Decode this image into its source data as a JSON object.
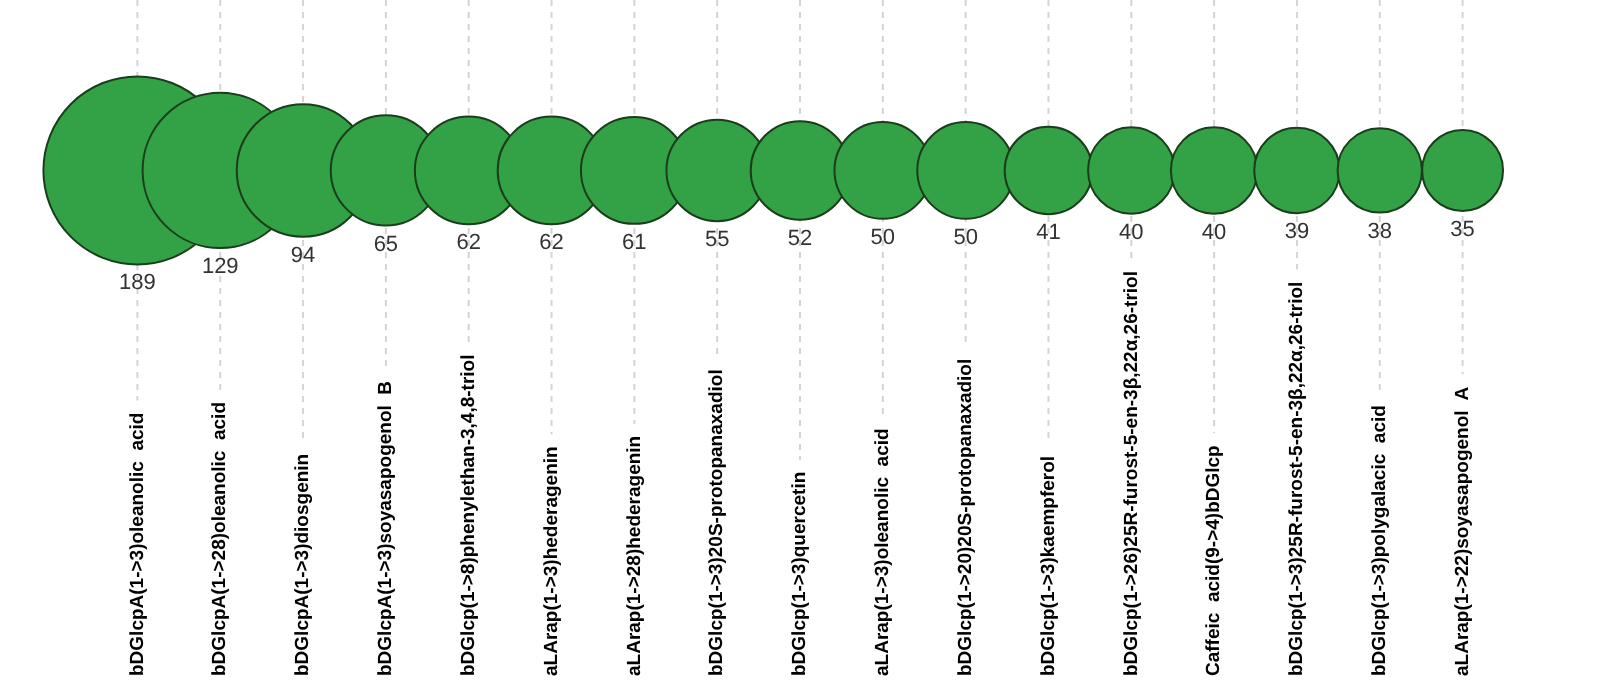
{
  "chart_data": {
    "type": "other",
    "categories": [
      "bDGlcpA(1->3)oleanolic  acid",
      "bDGlcpA(1->28)oleanolic  acid",
      "bDGlcpA(1->3)diosgenin",
      "bDGlcpA(1->3)soyasapogenol  B",
      "bDGlcp(1->8)phenylethan-3,4,8-triol",
      "aLArap(1->3)hederagenin",
      "aLArap(1->28)hederagenin",
      "bDGlcp(1->3)20S-protopanaxadiol",
      "bDGlcp(1->3)quercetin",
      "aLArap(1->3)oleanolic  acid",
      "bDGlcp(1->20)20S-protopanaxadiol",
      "bDGlcp(1->3)kaempferol",
      "bDGlcp(1->26)25R-furost-5-en-3β,22α,26-triol",
      "Caffeic  acid(9->4)bDGlcp",
      "bDGlcp(1->3)25R-furost-5-en-3β,22α,26-triol",
      "bDGlcp(1->3)polygalacic  acid",
      "aLArap(1->22)soyasapogenol  A"
    ],
    "values": [
      189,
      129,
      94,
      65,
      62,
      62,
      61,
      55,
      52,
      50,
      50,
      41,
      40,
      40,
      39,
      38,
      35
    ],
    "data_labels": true,
    "color": "#33a146",
    "legend": false
  }
}
